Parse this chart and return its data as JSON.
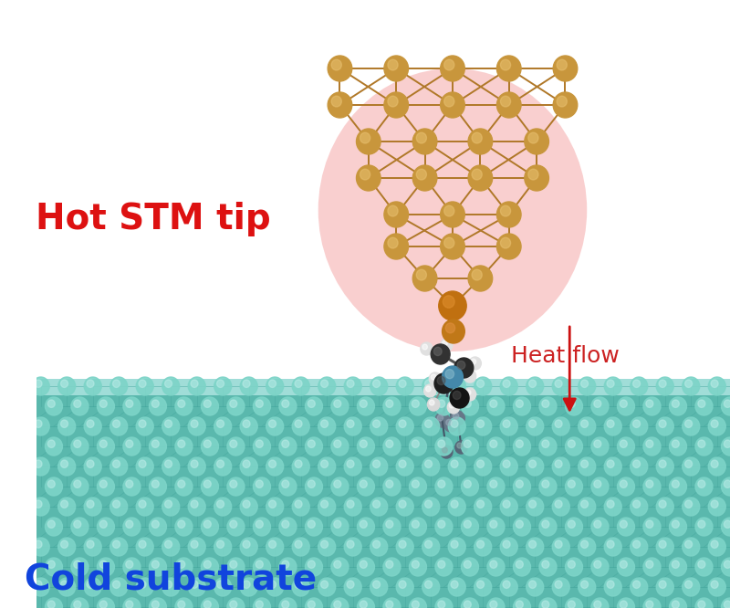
{
  "bg_color": "#ffffff",
  "substrate_color": "#5ab8ad",
  "substrate_atom_color": "#7dd4c8",
  "substrate_line_color": "#3a9e96",
  "substrate_surface_color": "#a0ddd8",
  "hot_glow_color": "#f8c0c0",
  "hot_glow_alpha": 0.75,
  "tip_gold_color": "#c8963c",
  "tip_gold_highlight": "#e8c070",
  "tip_bond_color": "#b07828",
  "arrow_color": "#cc1111",
  "label_hot_color": "#dd1111",
  "label_cold_color": "#1144dd",
  "label_heat_color": "#cc2222",
  "label_hot": "Hot STM tip",
  "label_cold": "Cold substrate",
  "label_heat": "Heat flow"
}
